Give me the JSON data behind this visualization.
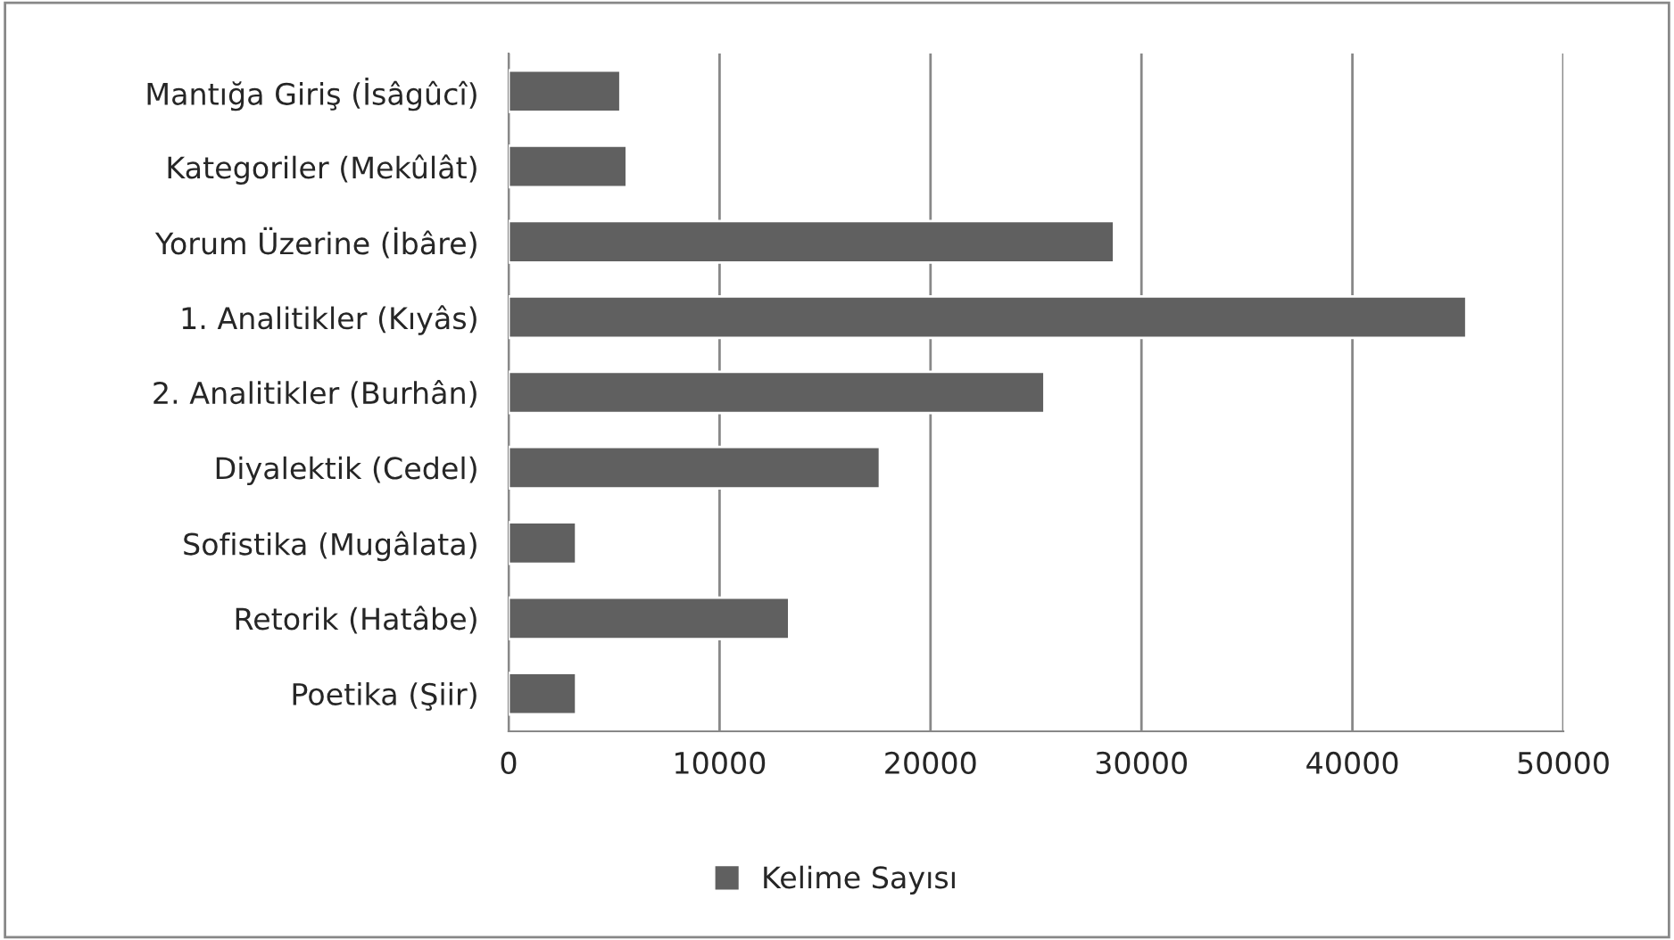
{
  "chart_data": {
    "type": "bar",
    "orientation": "horizontal",
    "categories": [
      "Mantığa Giriş (İsâgûcî)",
      "Kategoriler (Mekûlât)",
      "Yorum Üzerine (İbâre)",
      "1. Analitikler (Kıyâs)",
      "2. Analitikler (Burhân)",
      "Diyalektik (Cedel)",
      "Sofistika (Mugâlata)",
      "Retorik (Hatâbe)",
      "Poetika (Şiir)"
    ],
    "series": [
      {
        "name": "Kelime Sayısı",
        "color": "#606060",
        "values": [
          5300,
          5600,
          28700,
          45400,
          25400,
          17600,
          3200,
          13300,
          3200
        ]
      }
    ],
    "xlim": [
      0,
      50000
    ],
    "xticks": [
      0,
      10000,
      20000,
      30000,
      40000,
      50000
    ],
    "grid": "x",
    "legend": "bottom"
  }
}
